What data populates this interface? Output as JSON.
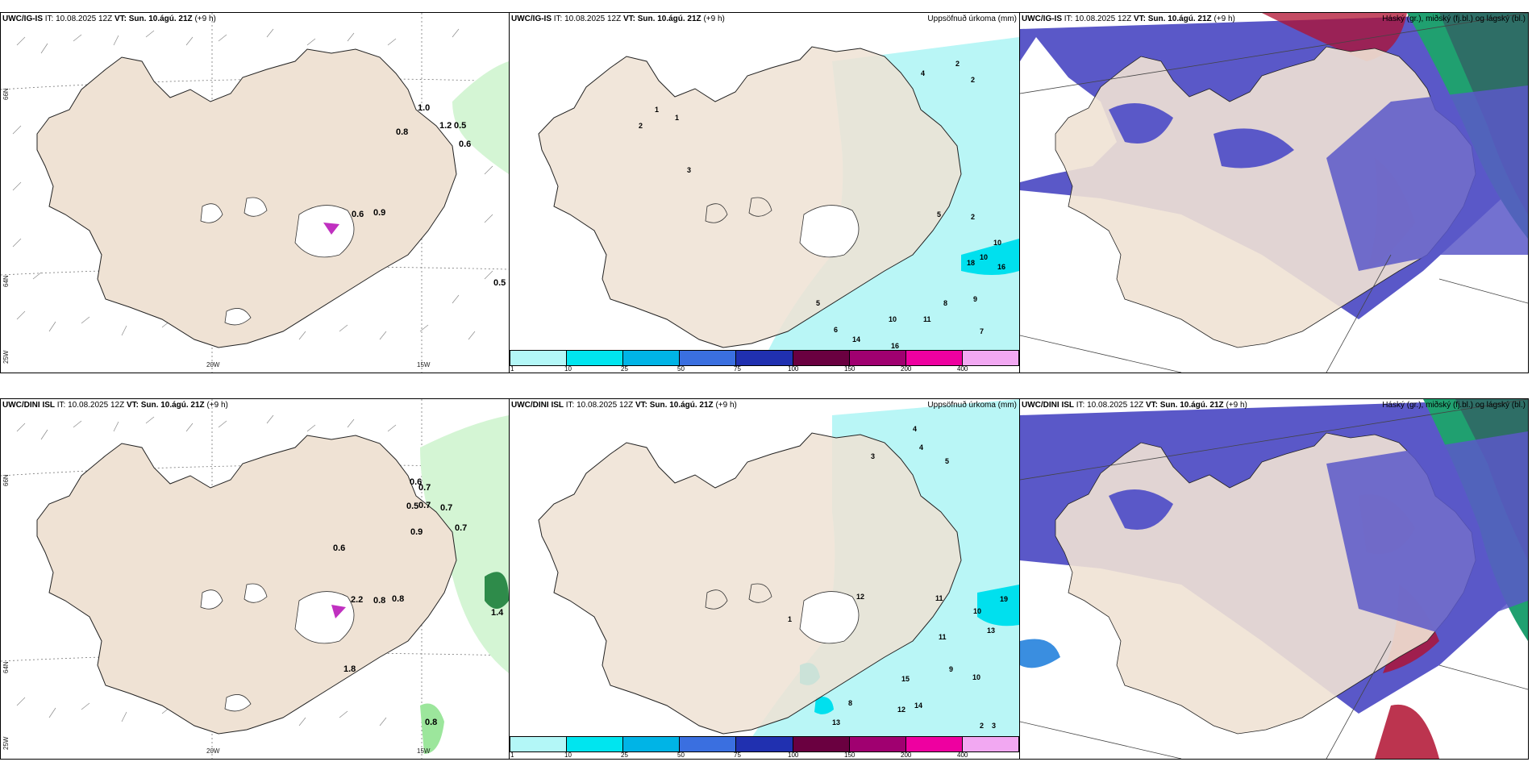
{
  "rows": [
    {
      "model": "UWC/IG-IS",
      "it": "IT: 10.08.2025 12Z",
      "vt_label": "VT:",
      "vt": "Sun. 10.ágú. 21Z",
      "lead": "(+9 h)"
    },
    {
      "model": "UWC/DINI ISL",
      "it": "IT: 10.08.2025 12Z",
      "vt_label": "VT:",
      "vt": "Sun. 10.ágú. 21Z",
      "lead": "(+9 h)"
    }
  ],
  "titles": {
    "precip": "Uppsöfnuð úrkoma (mm)",
    "cloud": "Háský (gr.), miðský (fj.bl.) og lágský (bl.)"
  },
  "axis_labels": {
    "lon_20w": "20W",
    "lon_15w": "15W",
    "lat_66n": "66N",
    "lat_64n": "64N",
    "lon_25w": "25W"
  },
  "colorbar": {
    "ticks": [
      "1",
      "10",
      "25",
      "50",
      "75",
      "100",
      "150",
      "200",
      "400"
    ],
    "colors": [
      "#b3f7f7",
      "#00e5ef",
      "#00b4e6",
      "#3a6fe0",
      "#2030b0",
      "#6a0040",
      "#a00070",
      "#ee00a0",
      "#f2a8f2"
    ]
  },
  "colors": {
    "land": "#efe2d4",
    "precip_light": "#b9f6f6",
    "precip_med": "#00e0ee",
    "green_light": "#d4f5d4",
    "green_med": "#9ce69c",
    "green_dark": "#2e8b4a",
    "cloud_high": "#5a58c8",
    "cloud_mid_red": "#b01030",
    "cloud_low_green": "#20a070",
    "cloud_teal": "#2e6e66"
  },
  "values": {
    "r1_wind": [
      "1.0",
      "1.2",
      "0.5",
      "0.8",
      "0.6",
      "0.6",
      "0.9",
      "0.5"
    ],
    "r2_wind": [
      "0.6",
      "0.7",
      "0.5",
      "0.7",
      "0.7",
      "0.9",
      "0.7",
      "0.6",
      "0.8",
      "0.8",
      "1.8",
      "1.4",
      "0.8",
      "2.2"
    ],
    "r1_precip": [
      "2",
      "2",
      "1",
      "4",
      "2",
      "1",
      "3",
      "5",
      "10",
      "10",
      "18",
      "16",
      "10",
      "11",
      "16",
      "14",
      "8",
      "9",
      "7",
      "2",
      "6",
      "5"
    ],
    "r2_precip": [
      "4",
      "3",
      "5",
      "4",
      "12",
      "19",
      "13",
      "11",
      "10",
      "15",
      "14",
      "12",
      "13",
      "8",
      "9",
      "10",
      "3",
      "2",
      "1",
      "11"
    ]
  }
}
